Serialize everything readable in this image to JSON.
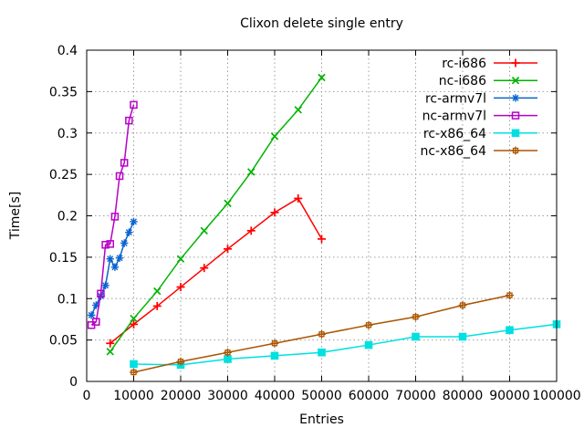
{
  "window": {
    "title": "Clixon delete single entry"
  },
  "chart_data": {
    "type": "line",
    "title": "Clixon delete single entry",
    "xlabel": "Entries",
    "ylabel": "Time[s]",
    "xlim": [
      0,
      100000
    ],
    "ylim": [
      0,
      0.4
    ],
    "grid": true,
    "legend_position": "top-right-inside",
    "xticks": {
      "values": [
        0,
        10000,
        20000,
        30000,
        40000,
        50000,
        60000,
        70000,
        80000,
        90000,
        100000
      ],
      "labels": [
        "0",
        "10000",
        "20000",
        "30000",
        "40000",
        "50000",
        "60000",
        "70000",
        "80000",
        "90000",
        "100000"
      ]
    },
    "yticks": {
      "values": [
        0,
        0.05,
        0.1,
        0.15,
        0.2,
        0.25,
        0.3,
        0.35,
        0.4
      ],
      "labels": [
        "0",
        "0.05",
        "0.1",
        "0.15",
        "0.2",
        "0.25",
        "0.3",
        "0.35",
        "0.4"
      ]
    },
    "colors": {
      "grid": "#9e9e9e",
      "axis": "#000000",
      "background": "#ffffff"
    },
    "series": [
      {
        "name": "rc-i686",
        "color": "#ff0000",
        "marker": "plus",
        "x": [
          5000,
          10000,
          15000,
          20000,
          25000,
          30000,
          35000,
          40000,
          45000,
          50000
        ],
        "y": [
          0.046,
          0.069,
          0.091,
          0.114,
          0.137,
          0.16,
          0.182,
          0.204,
          0.221,
          0.172
        ]
      },
      {
        "name": "nc-i686",
        "color": "#00b400",
        "marker": "cross",
        "x": [
          5000,
          10000,
          15000,
          20000,
          25000,
          30000,
          35000,
          40000,
          45000,
          50000
        ],
        "y": [
          0.036,
          0.076,
          0.109,
          0.148,
          0.182,
          0.215,
          0.253,
          0.296,
          0.328,
          0.367
        ]
      },
      {
        "name": "rc-armv7l",
        "color": "#0a64d0",
        "marker": "asterisk",
        "x": [
          1000,
          2000,
          3000,
          4000,
          5000,
          6000,
          7000,
          8000,
          9000,
          10000
        ],
        "y": [
          0.08,
          0.092,
          0.103,
          0.116,
          0.148,
          0.138,
          0.149,
          0.167,
          0.18,
          0.193
        ]
      },
      {
        "name": "nc-armv7l",
        "color": "#b800c8",
        "marker": "open-square",
        "x": [
          1000,
          2000,
          3000,
          4000,
          5000,
          6000,
          7000,
          8000,
          9000,
          10000
        ],
        "y": [
          0.068,
          0.072,
          0.106,
          0.165,
          0.166,
          0.199,
          0.248,
          0.264,
          0.315,
          0.334
        ]
      },
      {
        "name": "rc-x86_64",
        "color": "#00e0e0",
        "marker": "filled-square",
        "x": [
          10000,
          20000,
          30000,
          40000,
          50000,
          60000,
          70000,
          80000,
          90000,
          100000
        ],
        "y": [
          0.021,
          0.02,
          0.027,
          0.031,
          0.035,
          0.044,
          0.054,
          0.054,
          0.062,
          0.069
        ]
      },
      {
        "name": "nc-x86_64",
        "color": "#aa5500",
        "marker": "crossed-square",
        "x": [
          10000,
          20000,
          30000,
          40000,
          50000,
          60000,
          70000,
          80000,
          90000
        ],
        "y": [
          0.011,
          0.024,
          0.035,
          0.046,
          0.057,
          0.068,
          0.078,
          0.092,
          0.104
        ]
      }
    ]
  }
}
